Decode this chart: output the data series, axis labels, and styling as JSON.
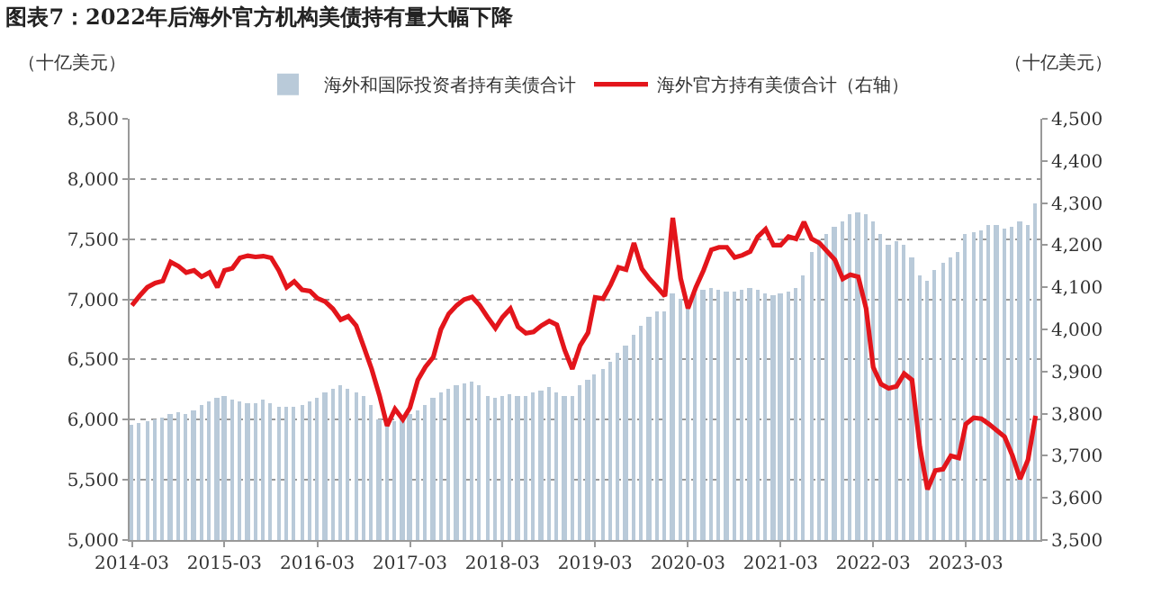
{
  "chart_data": {
    "type": "bar",
    "title": "图表7：2022年后海外官方机构美债持有量大幅下降",
    "ylabel": "（十亿美元）",
    "y2label": "（十亿美元）",
    "x": [
      "2014-03",
      "2014-04",
      "2014-05",
      "2014-06",
      "2014-07",
      "2014-08",
      "2014-09",
      "2014-10",
      "2014-11",
      "2014-12",
      "2015-01",
      "2015-02",
      "2015-03",
      "2015-04",
      "2015-05",
      "2015-06",
      "2015-07",
      "2015-08",
      "2015-09",
      "2015-10",
      "2015-11",
      "2015-12",
      "2016-01",
      "2016-02",
      "2016-03",
      "2016-04",
      "2016-05",
      "2016-06",
      "2016-07",
      "2016-08",
      "2016-09",
      "2016-10",
      "2016-11",
      "2016-12",
      "2017-01",
      "2017-02",
      "2017-03",
      "2017-04",
      "2017-05",
      "2017-06",
      "2017-07",
      "2017-08",
      "2017-09",
      "2017-10",
      "2017-11",
      "2017-12",
      "2018-01",
      "2018-02",
      "2018-03",
      "2018-04",
      "2018-05",
      "2018-06",
      "2018-07",
      "2018-08",
      "2018-09",
      "2018-10",
      "2018-11",
      "2018-12",
      "2019-01",
      "2019-02",
      "2019-03",
      "2019-04",
      "2019-05",
      "2019-06",
      "2019-07",
      "2019-08",
      "2019-09",
      "2019-10",
      "2019-11",
      "2019-12",
      "2020-01",
      "2020-02",
      "2020-03",
      "2020-04",
      "2020-05",
      "2020-06",
      "2020-07",
      "2020-08",
      "2020-09",
      "2020-10",
      "2020-11",
      "2020-12",
      "2021-01",
      "2021-02",
      "2021-03",
      "2021-04",
      "2021-05",
      "2021-06",
      "2021-07",
      "2021-08",
      "2021-09",
      "2021-10",
      "2021-11",
      "2021-12",
      "2022-01",
      "2022-02",
      "2022-03",
      "2022-04",
      "2022-05",
      "2022-06",
      "2022-07",
      "2022-08",
      "2022-09",
      "2022-10",
      "2022-11",
      "2022-12",
      "2023-01",
      "2023-02",
      "2023-03",
      "2023-04",
      "2023-05",
      "2023-06",
      "2023-07",
      "2023-08",
      "2023-09",
      "2023-10",
      "2023-11",
      "2023-12"
    ],
    "series": [
      {
        "name": "海外和国际投资者持有美债合计",
        "color": "#b9cad9",
        "values": [
          5950,
          5970,
          5990,
          6000,
          6010,
          6040,
          6060,
          6050,
          6080,
          6120,
          6150,
          6180,
          6200,
          6160,
          6150,
          6130,
          6140,
          6160,
          6130,
          6110,
          6100,
          6110,
          6120,
          6150,
          6180,
          6220,
          6260,
          6280,
          6250,
          6230,
          6200,
          6120,
          6000,
          5950,
          5980,
          6000,
          6050,
          6080,
          6120,
          6180,
          6230,
          6250,
          6280,
          6300,
          6310,
          6290,
          6200,
          6180,
          6200,
          6210,
          6190,
          6200,
          6220,
          6240,
          6270,
          6230,
          6190,
          6200,
          6280,
          6330,
          6380,
          6420,
          6480,
          6560,
          6620,
          6700,
          6780,
          6850,
          6900,
          6900,
          7050,
          7000,
          6950,
          7050,
          7080,
          7100,
          7080,
          7070,
          7060,
          7080,
          7100,
          7080,
          7050,
          7030,
          7050,
          7060,
          7100,
          7200,
          7400,
          7500,
          7550,
          7600,
          7650,
          7700,
          7720,
          7700,
          7650,
          7550,
          7450,
          7480,
          7450,
          7350,
          7200,
          7150,
          7250,
          7300,
          7350,
          7400,
          7550,
          7560,
          7580,
          7620,
          7620,
          7590,
          7610,
          7650,
          7620,
          7800
        ]
      },
      {
        "name": "海外官方持有美债合计（右轴）",
        "type": "line",
        "axis": "y2",
        "color": "#e3151b",
        "values": [
          4057,
          4080,
          4100,
          4110,
          4115,
          4160,
          4150,
          4135,
          4140,
          4125,
          4135,
          4100,
          4140,
          4145,
          4170,
          4175,
          4172,
          4174,
          4170,
          4140,
          4100,
          4114,
          4094,
          4091,
          4074,
          4066,
          4049,
          4023,
          4031,
          4009,
          3957,
          3906,
          3843,
          3771,
          3811,
          3786,
          3814,
          3880,
          3911,
          3934,
          4000,
          4037,
          4057,
          4071,
          4077,
          4057,
          4029,
          4003,
          4029,
          4049,
          4006,
          3991,
          3994,
          4009,
          4020,
          4011,
          3951,
          3906,
          3962,
          3992,
          4076,
          4073,
          4106,
          4147,
          4142,
          4205,
          4144,
          4120,
          4100,
          4079,
          4265,
          4121,
          4050,
          4100,
          4140,
          4189,
          4195,
          4195,
          4171,
          4176,
          4185,
          4220,
          4238,
          4200,
          4200,
          4220,
          4215,
          4255,
          4215,
          4205,
          4185,
          4165,
          4120,
          4130,
          4125,
          4050,
          3910,
          3870,
          3860,
          3865,
          3895,
          3880,
          3720,
          3620,
          3665,
          3668,
          3700,
          3695,
          3775,
          3790,
          3788,
          3775,
          3760,
          3745,
          3700,
          3645,
          3690,
          3795
        ]
      }
    ],
    "xlim": [
      "2014-02-20",
      "2023-12-20"
    ],
    "xticks": [
      {
        "value": "2014-03",
        "label": "2014-03"
      },
      {
        "value": "2015-03",
        "label": "2015-03"
      },
      {
        "value": "2016-03",
        "label": "2016-03"
      },
      {
        "value": "2017-03",
        "label": "2017-03"
      },
      {
        "value": "2018-03",
        "label": "2018-03"
      },
      {
        "value": "2019-03",
        "label": "2019-03"
      },
      {
        "value": "2020-03",
        "label": "2020-03"
      },
      {
        "value": "2021-03",
        "label": "2021-03"
      },
      {
        "value": "2022-03",
        "label": "2022-03"
      },
      {
        "value": "2023-03",
        "label": "2023-03"
      }
    ],
    "ylim": [
      5000,
      8500
    ],
    "yticks": [
      {
        "value": 5000,
        "label": "5,000"
      },
      {
        "value": 5500,
        "label": "5,500"
      },
      {
        "value": 6000,
        "label": "6,000"
      },
      {
        "value": 6500,
        "label": "6,500"
      },
      {
        "value": 7000,
        "label": "7,000"
      },
      {
        "value": 7500,
        "label": "7,500"
      },
      {
        "value": 8000,
        "label": "8,000"
      },
      {
        "value": 8500,
        "label": "8,500"
      }
    ],
    "y2lim": [
      3500,
      4500
    ],
    "y2ticks": [
      {
        "value": 3500,
        "label": "3,500"
      },
      {
        "value": 3600,
        "label": "3,600"
      },
      {
        "value": 3700,
        "label": "3,700"
      },
      {
        "value": 3800,
        "label": "3,800"
      },
      {
        "value": 3900,
        "label": "3,900"
      },
      {
        "value": 4000,
        "label": "4,000"
      },
      {
        "value": 4100,
        "label": "4,100"
      },
      {
        "value": 4200,
        "label": "4,200"
      },
      {
        "value": 4300,
        "label": "4,300"
      },
      {
        "value": 4400,
        "label": "4,400"
      },
      {
        "value": 4500,
        "label": "4,500"
      }
    ],
    "grid": "y",
    "legend": "top",
    "marker": "none",
    "line_style": "solid"
  }
}
